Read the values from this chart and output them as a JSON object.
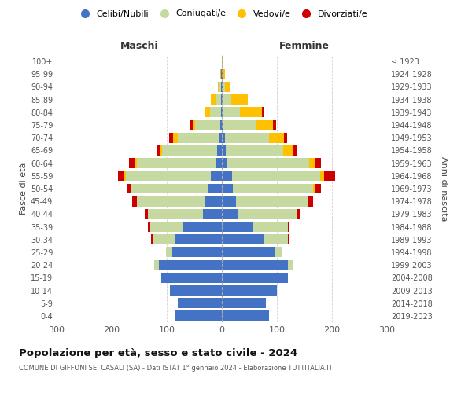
{
  "age_groups": [
    "0-4",
    "5-9",
    "10-14",
    "15-19",
    "20-24",
    "25-29",
    "30-34",
    "35-39",
    "40-44",
    "45-49",
    "50-54",
    "55-59",
    "60-64",
    "65-69",
    "70-74",
    "75-79",
    "80-84",
    "85-89",
    "90-94",
    "95-99",
    "100+"
  ],
  "birth_years": [
    "2019-2023",
    "2014-2018",
    "2009-2013",
    "2004-2008",
    "1999-2003",
    "1994-1998",
    "1989-1993",
    "1984-1988",
    "1979-1983",
    "1974-1978",
    "1969-1973",
    "1964-1968",
    "1959-1963",
    "1954-1958",
    "1949-1953",
    "1944-1948",
    "1939-1943",
    "1934-1938",
    "1929-1933",
    "1924-1928",
    "≤ 1923"
  ],
  "colors": {
    "celibi": "#4472c4",
    "coniugati": "#c5d9a0",
    "vedovi": "#ffc000",
    "divorziati": "#cc0000"
  },
  "maschi": {
    "celibi": [
      85,
      80,
      95,
      110,
      115,
      90,
      85,
      70,
      35,
      30,
      25,
      20,
      10,
      8,
      5,
      3,
      2,
      2,
      1,
      1,
      0
    ],
    "coniugati": [
      0,
      0,
      0,
      0,
      8,
      12,
      40,
      60,
      100,
      125,
      140,
      155,
      145,
      100,
      75,
      45,
      20,
      10,
      3,
      1,
      0
    ],
    "vedovi": [
      0,
      0,
      0,
      0,
      0,
      0,
      0,
      0,
      0,
      0,
      0,
      2,
      3,
      5,
      8,
      5,
      10,
      8,
      3,
      1,
      0
    ],
    "divorziati": [
      0,
      0,
      0,
      0,
      0,
      0,
      3,
      5,
      5,
      8,
      8,
      12,
      10,
      5,
      8,
      5,
      0,
      0,
      0,
      0,
      0
    ]
  },
  "femmine": {
    "nubili": [
      85,
      80,
      100,
      120,
      120,
      95,
      75,
      55,
      30,
      25,
      20,
      18,
      8,
      7,
      5,
      3,
      3,
      2,
      1,
      1,
      0
    ],
    "coniugate": [
      0,
      0,
      0,
      0,
      8,
      15,
      45,
      65,
      105,
      130,
      145,
      160,
      150,
      105,
      80,
      60,
      30,
      15,
      5,
      1,
      0
    ],
    "vedove": [
      0,
      0,
      0,
      0,
      0,
      0,
      0,
      0,
      1,
      2,
      5,
      8,
      12,
      18,
      28,
      30,
      40,
      30,
      10,
      3,
      1
    ],
    "divorziate": [
      0,
      0,
      0,
      0,
      0,
      0,
      2,
      3,
      5,
      8,
      10,
      20,
      10,
      5,
      5,
      5,
      2,
      0,
      0,
      0,
      0
    ]
  },
  "title": "Popolazione per età, sesso e stato civile - 2024",
  "subtitle": "COMUNE DI GIFFONI SEI CASALI (SA) - Dati ISTAT 1° gennaio 2024 - Elaborazione TUTTITALIA.IT",
  "header_left": "Maschi",
  "header_right": "Femmine",
  "ylabel_left": "Fasce di età",
  "ylabel_right": "Anni di nascita",
  "xlim": 300,
  "legend_labels": [
    "Celibi/Nubili",
    "Coniugati/e",
    "Vedovi/e",
    "Divorziati/e"
  ],
  "bg_color": "#ffffff",
  "grid_color": "#cccccc"
}
